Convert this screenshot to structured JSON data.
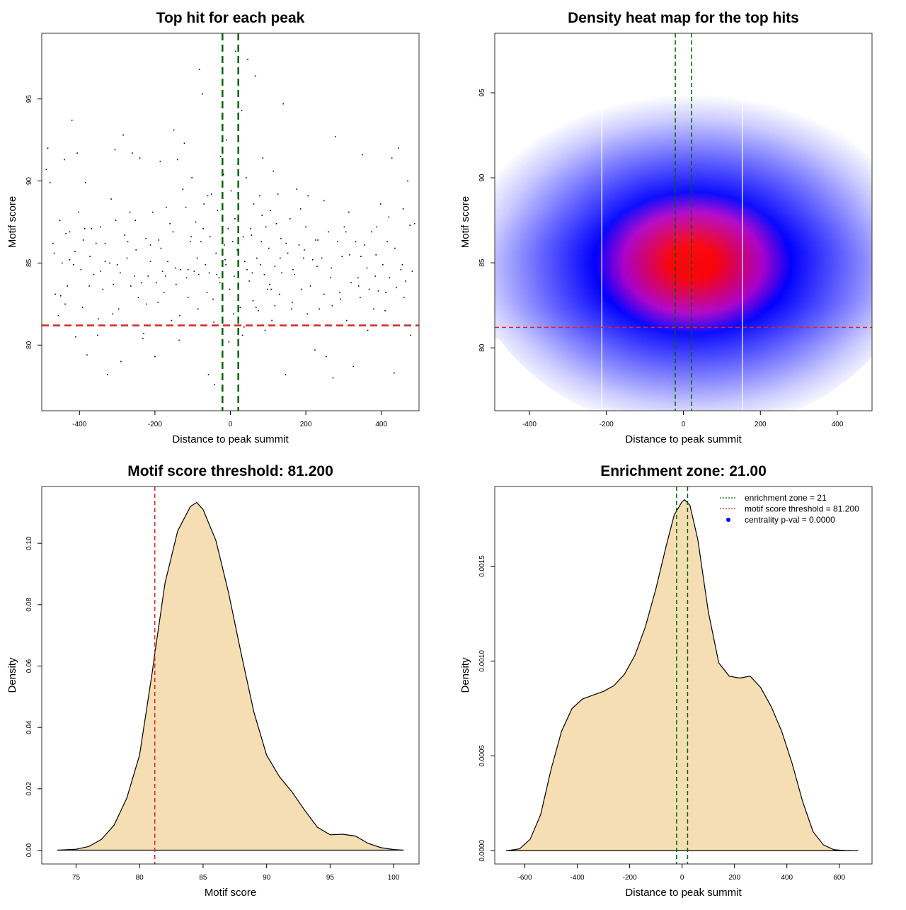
{
  "colors": {
    "frame": "#333333",
    "points": "#000000",
    "threshold_line": "#d62728",
    "zone_line": "#006400",
    "density_fill": "#f5deb3",
    "heat_low": "#ffffff",
    "heat_mid": "#0000ff",
    "heat_high": "#ff0000"
  },
  "chart_data": [
    {
      "id": "scatter",
      "type": "scatter",
      "title": "Top hit for each peak",
      "xlabel": "Distance to peak summit",
      "ylabel": "Motif score",
      "xlim": [
        -500,
        500
      ],
      "ylim": [
        76,
        99
      ],
      "xticks": [
        -400,
        -200,
        0,
        200,
        400
      ],
      "yticks": [
        80,
        85,
        90,
        95
      ],
      "xtick_labels": [
        "-400",
        "-200",
        "0",
        "200",
        "400"
      ],
      "ytick_labels": [
        "80",
        "85",
        "90",
        "95"
      ],
      "hlines": [
        81.2
      ],
      "vlines": [
        -21,
        21
      ],
      "points": [
        [
          -488,
          90.7
        ],
        [
          -484,
          92
        ],
        [
          -478,
          89.9
        ],
        [
          -470,
          86.2
        ],
        [
          -464,
          83.1
        ],
        [
          -456,
          81.8
        ],
        [
          -450,
          83
        ],
        [
          -446,
          85
        ],
        [
          -440,
          91.3
        ],
        [
          -436,
          86.8
        ],
        [
          -432,
          83.6
        ],
        [
          -426,
          85.2
        ],
        [
          -420,
          93.7
        ],
        [
          -416,
          84.9
        ],
        [
          -410,
          80.5
        ],
        [
          -406,
          91.7
        ],
        [
          -402,
          88.1
        ],
        [
          -396,
          84.6
        ],
        [
          -390,
          86.4
        ],
        [
          -384,
          89.9
        ],
        [
          -380,
          79.4
        ],
        [
          -374,
          83.6
        ],
        [
          -368,
          87.1
        ],
        [
          -362,
          84.3
        ],
        [
          -356,
          86.2
        ],
        [
          -350,
          81.6
        ],
        [
          -344,
          84.5
        ],
        [
          -338,
          83.4
        ],
        [
          -332,
          85.1
        ],
        [
          -326,
          78.2
        ],
        [
          -320,
          85
        ],
        [
          -316,
          88.9
        ],
        [
          -310,
          83.7
        ],
        [
          -306,
          91.9
        ],
        [
          -300,
          84.9
        ],
        [
          -296,
          82.2
        ],
        [
          -290,
          79
        ],
        [
          -284,
          92.8
        ],
        [
          -280,
          86.7
        ],
        [
          -274,
          85.3
        ],
        [
          -266,
          88.1
        ],
        [
          -260,
          91.7
        ],
        [
          -254,
          84.2
        ],
        [
          -250,
          85.8
        ],
        [
          -244,
          82.9
        ],
        [
          -240,
          91.4
        ],
        [
          -236,
          83.8
        ],
        [
          -230,
          80.7
        ],
        [
          -224,
          86.5
        ],
        [
          -218,
          84.2
        ],
        [
          -212,
          86.1
        ],
        [
          -206,
          88.1
        ],
        [
          -200,
          79.3
        ],
        [
          -196,
          83.8
        ],
        [
          -190,
          86.4
        ],
        [
          -186,
          91.2
        ],
        [
          -180,
          84.5
        ],
        [
          -176,
          83.2
        ],
        [
          -170,
          88.4
        ],
        [
          -166,
          85.1
        ],
        [
          -160,
          87.4
        ],
        [
          -156,
          81.5
        ],
        [
          -150,
          93.1
        ],
        [
          -144,
          83.7
        ],
        [
          -140,
          91.3
        ],
        [
          -136,
          80.3
        ],
        [
          -132,
          84.6
        ],
        [
          -126,
          89.5
        ],
        [
          -122,
          92.3
        ],
        [
          -116,
          84.1
        ],
        [
          -112,
          82.9
        ],
        [
          -106,
          86.3
        ],
        [
          -102,
          90.2
        ],
        [
          -96,
          84.5
        ],
        [
          -92,
          87.5
        ],
        [
          -86,
          82.2
        ],
        [
          -82,
          96.8
        ],
        [
          -78,
          86.3
        ],
        [
          -74,
          95.3
        ],
        [
          -70,
          88.6
        ],
        [
          -66,
          84.9
        ],
        [
          -62,
          83.2
        ],
        [
          -58,
          78.2
        ],
        [
          -54,
          86.6
        ],
        [
          -50,
          89.2
        ],
        [
          -46,
          82.8
        ],
        [
          -42,
          77.6
        ],
        [
          -38,
          85.6
        ],
        [
          -34,
          88.2
        ],
        [
          -30,
          84.1
        ],
        [
          -26,
          91.5
        ],
        [
          -22,
          86.8
        ],
        [
          -18,
          90.4
        ],
        [
          -14,
          85.2
        ],
        [
          -10,
          92.5
        ],
        [
          -6,
          87.1
        ],
        [
          -2,
          83.4
        ],
        [
          2,
          89.4
        ],
        [
          6,
          86.3
        ],
        [
          10,
          84.2
        ],
        [
          14,
          97.9
        ],
        [
          18,
          85.8
        ],
        [
          22,
          88.9
        ],
        [
          26,
          82.3
        ],
        [
          30,
          94.3
        ],
        [
          34,
          86.6
        ],
        [
          38,
          85.1
        ],
        [
          42,
          90.2
        ],
        [
          46,
          97.4
        ],
        [
          50,
          83.9
        ],
        [
          54,
          87.1
        ],
        [
          58,
          84.4
        ],
        [
          62,
          88.6
        ],
        [
          66,
          96.4
        ],
        [
          70,
          85.3
        ],
        [
          74,
          82.1
        ],
        [
          78,
          89.1
        ],
        [
          82,
          86.3
        ],
        [
          86,
          91.4
        ],
        [
          90,
          84.3
        ],
        [
          94,
          87.2
        ],
        [
          98,
          83.4
        ],
        [
          102,
          85.9
        ],
        [
          106,
          88.2
        ],
        [
          110,
          81.5
        ],
        [
          114,
          90.6
        ],
        [
          118,
          84.8
        ],
        [
          122,
          87.4
        ],
        [
          126,
          89.2
        ],
        [
          130,
          83.1
        ],
        [
          134,
          86.5
        ],
        [
          140,
          94.7
        ],
        [
          146,
          78.2
        ],
        [
          152,
          85.6
        ],
        [
          158,
          87.7
        ],
        [
          164,
          82.6
        ],
        [
          170,
          84.3
        ],
        [
          176,
          89.5
        ],
        [
          182,
          86.1
        ],
        [
          188,
          83.4
        ],
        [
          194,
          85.3
        ],
        [
          200,
          87.2
        ],
        [
          206,
          89.1
        ],
        [
          212,
          83.6
        ],
        [
          218,
          85.2
        ],
        [
          224,
          79.7
        ],
        [
          230,
          84.8
        ],
        [
          236,
          82.2
        ],
        [
          242,
          85.3
        ],
        [
          248,
          83.1
        ],
        [
          254,
          79.3
        ],
        [
          260,
          86.9
        ],
        [
          266,
          84.1
        ],
        [
          272,
          78
        ],
        [
          278,
          92.7
        ],
        [
          284,
          86.3
        ],
        [
          290,
          83.2
        ],
        [
          296,
          85.4
        ],
        [
          302,
          87.2
        ],
        [
          308,
          81.5
        ],
        [
          314,
          88.1
        ],
        [
          320,
          83.8
        ],
        [
          326,
          78.7
        ],
        [
          332,
          86.3
        ],
        [
          338,
          84.1
        ],
        [
          344,
          82.9
        ],
        [
          350,
          91.6
        ],
        [
          356,
          86.1
        ],
        [
          362,
          84.7
        ],
        [
          368,
          83.4
        ],
        [
          374,
          86.9
        ],
        [
          380,
          82.2
        ],
        [
          386,
          85.5
        ],
        [
          392,
          83.3
        ],
        [
          398,
          88.6
        ],
        [
          404,
          84.9
        ],
        [
          410,
          82.1
        ],
        [
          416,
          86.3
        ],
        [
          422,
          84.1
        ],
        [
          428,
          91.4
        ],
        [
          434,
          78.3
        ],
        [
          440,
          83.5
        ],
        [
          446,
          92
        ],
        [
          452,
          84.6
        ],
        [
          458,
          88.3
        ],
        [
          464,
          83.9
        ],
        [
          470,
          90
        ],
        [
          476,
          87.3
        ],
        [
          482,
          84.5
        ],
        [
          488,
          87.4
        ],
        [
          -467,
          85.6
        ],
        [
          -438,
          82.5
        ],
        [
          -412,
          85.7
        ],
        [
          -392,
          82.3
        ],
        [
          -372,
          85.4
        ],
        [
          -352,
          80.6
        ],
        [
          -332,
          86.2
        ],
        [
          -312,
          81.9
        ],
        [
          -292,
          84.4
        ],
        [
          -272,
          86.3
        ],
        [
          -252,
          87.6
        ],
        [
          -232,
          80.4
        ],
        [
          -212,
          85.1
        ],
        [
          -192,
          82.6
        ],
        [
          -172,
          84.2
        ],
        [
          -152,
          86.9
        ],
        [
          -134,
          81.8
        ],
        [
          -118,
          88.4
        ],
        [
          -104,
          86.6
        ],
        [
          -88,
          85.3
        ],
        [
          -72,
          87.1
        ],
        [
          -56,
          84.4
        ],
        [
          -44,
          81.4
        ],
        [
          -28,
          83.8
        ],
        [
          -16,
          86.1
        ],
        [
          -4,
          80.2
        ],
        [
          8,
          81.9
        ],
        [
          20,
          83.6
        ],
        [
          32,
          80.6
        ],
        [
          44,
          84.6
        ],
        [
          56,
          86.7
        ],
        [
          68,
          82.3
        ],
        [
          80,
          84.9
        ],
        [
          92,
          80.9
        ],
        [
          104,
          83.7
        ],
        [
          118,
          82.4
        ],
        [
          132,
          85.3
        ],
        [
          148,
          86.2
        ],
        [
          166,
          84.6
        ],
        [
          186,
          88.3
        ],
        [
          204,
          81.9
        ],
        [
          226,
          86.4
        ],
        [
          248,
          88.8
        ],
        [
          268,
          84.7
        ],
        [
          292,
          82.8
        ],
        [
          316,
          85.5
        ],
        [
          340,
          83.6
        ],
        [
          364,
          80.9
        ],
        [
          388,
          87.2
        ],
        [
          412,
          83.2
        ],
        [
          436,
          85.9
        ],
        [
          460,
          82.9
        ],
        [
          478,
          80.6
        ],
        [
          -452,
          87.6
        ],
        [
          -426,
          86.9
        ],
        [
          -386,
          87.1
        ],
        [
          -344,
          87.2
        ],
        [
          -304,
          87.6
        ],
        [
          -264,
          83.6
        ],
        [
          -222,
          82.5
        ],
        [
          -184,
          85.9
        ],
        [
          -146,
          84.7
        ],
        [
          -112,
          84.6
        ],
        [
          -84,
          84.3
        ],
        [
          -60,
          89.1
        ],
        [
          -36,
          84.3
        ],
        [
          -12,
          84.9
        ],
        [
          12,
          87.7
        ],
        [
          36,
          81.1
        ],
        [
          60,
          82.7
        ],
        [
          84,
          87.9
        ],
        [
          108,
          83.4
        ],
        [
          136,
          84.4
        ],
        [
          162,
          82.2
        ],
        [
          196,
          85.8
        ],
        [
          232,
          86.4
        ],
        [
          270,
          82.4
        ],
        [
          306,
          86.9
        ],
        [
          346,
          85.4
        ],
        [
          384,
          84.2
        ],
        [
          420,
          87.8
        ],
        [
          456,
          84.9
        ]
      ]
    },
    {
      "id": "heatmap",
      "type": "heatmap",
      "title": "Density heat map for the top hits",
      "xlabel": "Distance to peak summit",
      "ylabel": "Motif score",
      "xlim": [
        -490,
        490
      ],
      "ylim": [
        76.3,
        98.5
      ],
      "xticks": [
        -400,
        -200,
        0,
        200,
        400
      ],
      "yticks": [
        80,
        85,
        90,
        95
      ],
      "xtick_labels": [
        "-400",
        "-200",
        "0",
        "200",
        "400"
      ],
      "ytick_labels": [
        "80",
        "85",
        "90",
        "95"
      ],
      "hlines": [
        81.2
      ],
      "vlines": [
        -21,
        21
      ],
      "white_vlines": [
        -212,
        153
      ],
      "density_peak": {
        "x": 25,
        "y": 85
      }
    },
    {
      "id": "score-density",
      "type": "area",
      "title": "Motif score threshold: 81.200",
      "xlabel": "Motif score",
      "ylabel": "Density",
      "xlim": [
        72.3,
        102
      ],
      "ylim": [
        -0.0045,
        0.1185
      ],
      "xticks": [
        75,
        80,
        85,
        90,
        95,
        100
      ],
      "yticks": [
        0,
        0.02,
        0.04,
        0.06,
        0.08,
        0.1
      ],
      "xtick_labels": [
        "75",
        "80",
        "85",
        "90",
        "95",
        "100"
      ],
      "ytick_labels": [
        "0.00",
        "0.02",
        "0.04",
        "0.06",
        "0.08",
        "0.10"
      ],
      "vlines": [
        81.2
      ],
      "x": [
        73.5,
        75,
        76,
        77,
        78,
        79,
        80,
        81,
        81.2,
        82,
        83,
        84,
        84.5,
        85,
        86,
        87,
        88,
        89,
        90,
        91,
        92,
        93,
        94,
        95,
        96,
        97,
        98,
        99,
        100,
        100.8
      ],
      "y": [
        0,
        0.0003,
        0.0012,
        0.0035,
        0.0082,
        0.017,
        0.031,
        0.058,
        0.064,
        0.087,
        0.104,
        0.112,
        0.1133,
        0.111,
        0.101,
        0.084,
        0.064,
        0.045,
        0.031,
        0.024,
        0.019,
        0.013,
        0.0075,
        0.005,
        0.0052,
        0.0046,
        0.0022,
        0.0008,
        0.0002,
        0
      ]
    },
    {
      "id": "distance-density",
      "type": "area",
      "title": "Enrichment zone: 21.00",
      "xlabel": "Distance to peak summit",
      "ylabel": "Density",
      "xlim": [
        -715,
        725
      ],
      "ylim": [
        -7e-05,
        0.00192
      ],
      "xticks": [
        -600,
        -400,
        -200,
        0,
        200,
        400,
        600
      ],
      "yticks": [
        0,
        0.0005,
        0.001,
        0.0015
      ],
      "xtick_labels": [
        "-600",
        "-400",
        "-200",
        "0",
        "200",
        "400",
        "600"
      ],
      "ytick_labels": [
        "0.0000",
        "0.0005",
        "0.0010",
        "0.0015"
      ],
      "vlines": [
        -21,
        21
      ],
      "x": [
        -670,
        -620,
        -580,
        -540,
        -500,
        -460,
        -420,
        -380,
        -340,
        -300,
        -260,
        -220,
        -180,
        -140,
        -100,
        -60,
        -30,
        0,
        10,
        30,
        60,
        100,
        140,
        180,
        220,
        260,
        300,
        340,
        380,
        420,
        460,
        500,
        540,
        580,
        620,
        670
      ],
      "y": [
        0,
        1e-05,
        6e-05,
        0.00019,
        0.00043,
        0.00063,
        0.00075,
        0.0008,
        0.00082,
        0.00084,
        0.00087,
        0.00093,
        0.00103,
        0.00118,
        0.00138,
        0.00161,
        0.00177,
        0.00184,
        0.00185,
        0.00182,
        0.00164,
        0.00126,
        0.00099,
        0.00092,
        0.00091,
        0.00092,
        0.00086,
        0.00076,
        0.00063,
        0.00046,
        0.00026,
        0.0001,
        3e-05,
        5e-06,
        1e-06,
        0
      ],
      "legend": {
        "position": "top-right",
        "entries": [
          {
            "label": "enrichment zone = 21",
            "style": "dotted-line",
            "color": "#006400"
          },
          {
            "label": "motif score threshold = 81.200",
            "style": "dotted-line",
            "color": "#d62728"
          },
          {
            "label": "centrality p-val = 0.0000",
            "style": "dot",
            "color": "#0000ff"
          }
        ]
      }
    }
  ]
}
